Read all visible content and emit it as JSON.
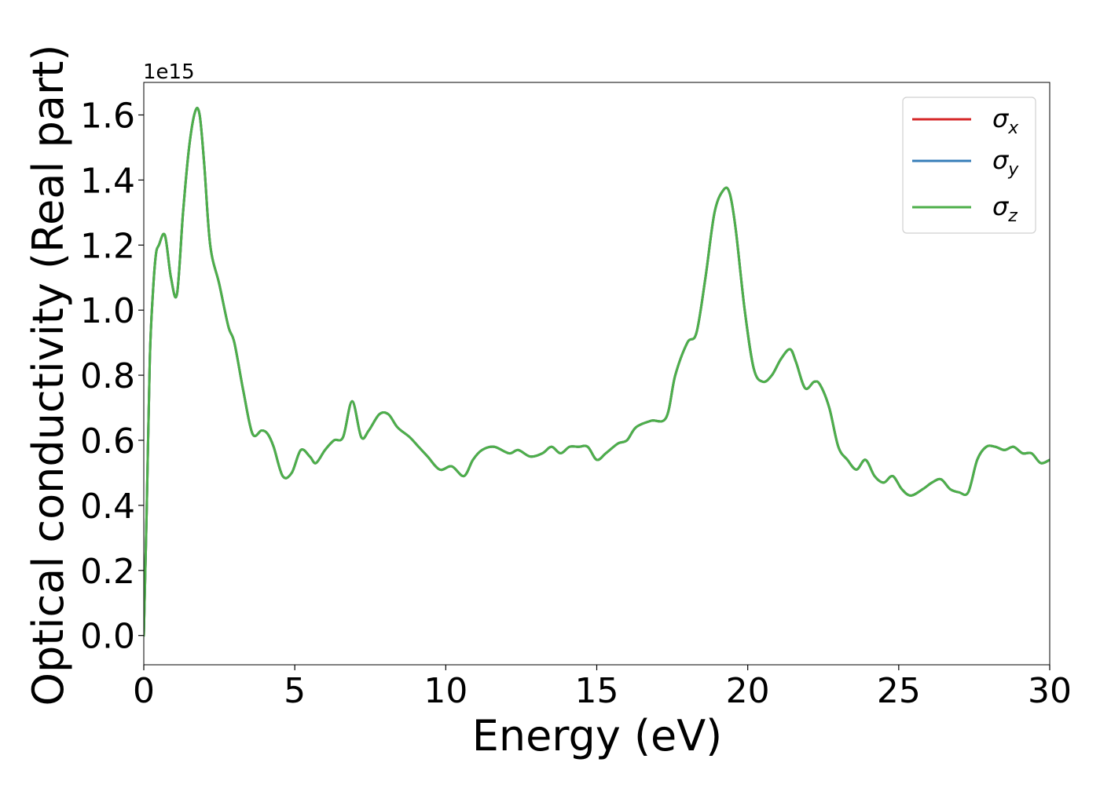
{
  "chart_data": {
    "type": "line",
    "xlabel": "Energy (eV)",
    "ylabel": "Optical conductivity (Real part)",
    "offset_text": "1e15",
    "xlim": [
      0,
      30
    ],
    "ylim": [
      -0.09,
      1.7
    ],
    "x_ticks": [
      0,
      5,
      10,
      15,
      20,
      25,
      30
    ],
    "x_tick_labels": [
      "0",
      "5",
      "10",
      "15",
      "20",
      "25",
      "30"
    ],
    "y_ticks": [
      0.0,
      0.2,
      0.4,
      0.6,
      0.8,
      1.0,
      1.2,
      1.4,
      1.6
    ],
    "y_tick_labels": [
      "0.0",
      "0.2",
      "0.4",
      "0.6",
      "0.8",
      "1.0",
      "1.2",
      "1.4",
      "1.6"
    ],
    "grid": false,
    "legend_position": "top-right",
    "x": [
      0,
      0.1,
      0.2,
      0.3,
      0.4,
      0.5,
      0.7,
      0.9,
      1.1,
      1.3,
      1.5,
      1.7,
      1.85,
      2.0,
      2.2,
      2.5,
      2.8,
      3.0,
      3.3,
      3.6,
      3.9,
      4.1,
      4.3,
      4.6,
      4.9,
      5.2,
      5.5,
      5.7,
      6.0,
      6.3,
      6.6,
      6.9,
      7.2,
      7.45,
      7.8,
      8.1,
      8.4,
      8.8,
      9.1,
      9.4,
      9.8,
      10.2,
      10.6,
      10.9,
      11.2,
      11.6,
      12.1,
      12.4,
      12.8,
      13.2,
      13.5,
      13.8,
      14.1,
      14.4,
      14.7,
      15.0,
      15.3,
      15.7,
      16.0,
      16.3,
      16.8,
      17.3,
      17.6,
      18.0,
      18.3,
      18.6,
      18.9,
      19.2,
      19.4,
      19.6,
      19.9,
      20.2,
      20.5,
      20.8,
      21.1,
      21.4,
      21.6,
      21.9,
      22.2,
      22.4,
      22.7,
      23.0,
      23.3,
      23.6,
      23.9,
      24.2,
      24.5,
      24.8,
      25.1,
      25.4,
      25.8,
      26.1,
      26.4,
      26.7,
      27.0,
      27.3,
      27.6,
      27.9,
      28.2,
      28.5,
      28.8,
      29.1,
      29.4,
      29.7,
      30.0
    ],
    "series": [
      {
        "name": "σx",
        "color": "#d62728",
        "values": [
          0.0,
          0.4,
          0.85,
          1.05,
          1.17,
          1.2,
          1.23,
          1.1,
          1.05,
          1.3,
          1.5,
          1.61,
          1.6,
          1.45,
          1.2,
          1.08,
          0.95,
          0.9,
          0.75,
          0.62,
          0.63,
          0.62,
          0.58,
          0.49,
          0.5,
          0.57,
          0.55,
          0.53,
          0.57,
          0.6,
          0.61,
          0.72,
          0.61,
          0.63,
          0.68,
          0.68,
          0.64,
          0.61,
          0.58,
          0.55,
          0.51,
          0.52,
          0.49,
          0.54,
          0.57,
          0.58,
          0.56,
          0.57,
          0.55,
          0.56,
          0.58,
          0.56,
          0.58,
          0.58,
          0.58,
          0.54,
          0.56,
          0.59,
          0.6,
          0.64,
          0.66,
          0.67,
          0.8,
          0.9,
          0.93,
          1.1,
          1.3,
          1.37,
          1.36,
          1.25,
          1.0,
          0.82,
          0.78,
          0.8,
          0.85,
          0.88,
          0.84,
          0.76,
          0.78,
          0.77,
          0.7,
          0.58,
          0.54,
          0.51,
          0.54,
          0.49,
          0.47,
          0.49,
          0.45,
          0.43,
          0.45,
          0.47,
          0.48,
          0.45,
          0.44,
          0.44,
          0.54,
          0.58,
          0.58,
          0.57,
          0.58,
          0.56,
          0.56,
          0.53,
          0.54
        ]
      },
      {
        "name": "σy",
        "color": "#377eb8",
        "values": [
          0.0,
          0.4,
          0.85,
          1.05,
          1.17,
          1.2,
          1.23,
          1.1,
          1.05,
          1.3,
          1.5,
          1.61,
          1.6,
          1.45,
          1.2,
          1.08,
          0.95,
          0.9,
          0.75,
          0.62,
          0.63,
          0.62,
          0.58,
          0.49,
          0.5,
          0.57,
          0.55,
          0.53,
          0.57,
          0.6,
          0.61,
          0.72,
          0.61,
          0.63,
          0.68,
          0.68,
          0.64,
          0.61,
          0.58,
          0.55,
          0.51,
          0.52,
          0.49,
          0.54,
          0.57,
          0.58,
          0.56,
          0.57,
          0.55,
          0.56,
          0.58,
          0.56,
          0.58,
          0.58,
          0.58,
          0.54,
          0.56,
          0.59,
          0.6,
          0.64,
          0.66,
          0.67,
          0.8,
          0.9,
          0.93,
          1.1,
          1.3,
          1.37,
          1.36,
          1.25,
          1.0,
          0.82,
          0.78,
          0.8,
          0.85,
          0.88,
          0.84,
          0.76,
          0.78,
          0.77,
          0.7,
          0.58,
          0.54,
          0.51,
          0.54,
          0.49,
          0.47,
          0.49,
          0.45,
          0.43,
          0.45,
          0.47,
          0.48,
          0.45,
          0.44,
          0.44,
          0.54,
          0.58,
          0.58,
          0.57,
          0.58,
          0.56,
          0.56,
          0.53,
          0.54
        ]
      },
      {
        "name": "σz",
        "color": "#4daf4a",
        "values": [
          0.0,
          0.4,
          0.85,
          1.05,
          1.17,
          1.2,
          1.23,
          1.1,
          1.05,
          1.3,
          1.5,
          1.61,
          1.6,
          1.45,
          1.2,
          1.08,
          0.95,
          0.9,
          0.75,
          0.62,
          0.63,
          0.62,
          0.58,
          0.49,
          0.5,
          0.57,
          0.55,
          0.53,
          0.57,
          0.6,
          0.61,
          0.72,
          0.61,
          0.63,
          0.68,
          0.68,
          0.64,
          0.61,
          0.58,
          0.55,
          0.51,
          0.52,
          0.49,
          0.54,
          0.57,
          0.58,
          0.56,
          0.57,
          0.55,
          0.56,
          0.58,
          0.56,
          0.58,
          0.58,
          0.58,
          0.54,
          0.56,
          0.59,
          0.6,
          0.64,
          0.66,
          0.67,
          0.8,
          0.9,
          0.93,
          1.1,
          1.3,
          1.37,
          1.36,
          1.25,
          1.0,
          0.82,
          0.78,
          0.8,
          0.85,
          0.88,
          0.84,
          0.76,
          0.78,
          0.77,
          0.7,
          0.58,
          0.54,
          0.51,
          0.54,
          0.49,
          0.47,
          0.49,
          0.45,
          0.43,
          0.45,
          0.47,
          0.48,
          0.45,
          0.44,
          0.44,
          0.54,
          0.58,
          0.58,
          0.57,
          0.58,
          0.56,
          0.56,
          0.53,
          0.54
        ]
      }
    ],
    "legend": [
      {
        "symbol": "σ",
        "sub": "x"
      },
      {
        "symbol": "σ",
        "sub": "y"
      },
      {
        "symbol": "σ",
        "sub": "z"
      }
    ]
  }
}
